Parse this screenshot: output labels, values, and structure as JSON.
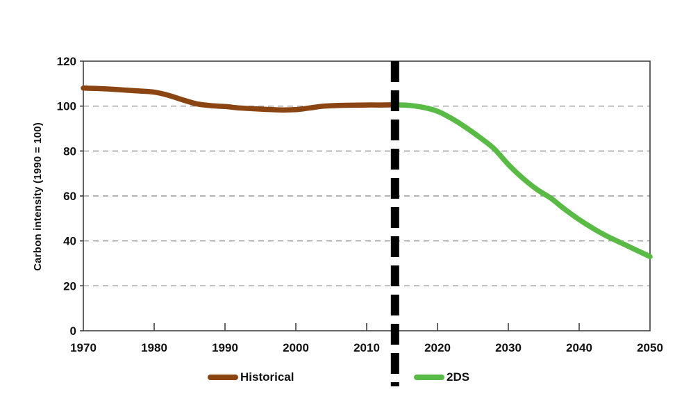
{
  "chart_data": {
    "type": "line",
    "title": "",
    "xlabel": "",
    "ylabel": "Carbon intensity (1990 = 100)",
    "xlim": [
      1970,
      2050
    ],
    "ylim": [
      0,
      120
    ],
    "x_ticks": [
      1970,
      1980,
      1990,
      2000,
      2010,
      2020,
      2030,
      2040,
      2050
    ],
    "y_ticks": [
      0,
      20,
      40,
      60,
      80,
      100,
      120
    ],
    "grid": "horizontal-dashed",
    "grid_color": "#9b9b9b",
    "axis_color": "#3f3f3f",
    "legend_position": "bottom",
    "divider": {
      "x": 2014,
      "style": "dashed",
      "color": "#000000"
    },
    "series": [
      {
        "name": "Historical",
        "color": "#8B4513",
        "x": [
          1970,
          1972,
          1974,
          1976,
          1978,
          1980,
          1982,
          1984,
          1986,
          1988,
          1990,
          1992,
          1994,
          1996,
          1998,
          2000,
          2002,
          2004,
          2006,
          2008,
          2010,
          2012,
          2014
        ],
        "values": [
          108,
          107.8,
          107.5,
          107.1,
          106.7,
          106.2,
          104.8,
          102.8,
          101,
          100.2,
          99.8,
          99.2,
          98.8,
          98.5,
          98.3,
          98.4,
          99.2,
          100,
          100.3,
          100.4,
          100.5,
          100.5,
          100.6
        ]
      },
      {
        "name": "2DS",
        "color": "#5ABA46",
        "x": [
          2014,
          2016,
          2018,
          2020,
          2022,
          2024,
          2026,
          2028,
          2030,
          2032,
          2034,
          2036,
          2038,
          2040,
          2042,
          2044,
          2046,
          2048,
          2050
        ],
        "values": [
          100.6,
          100.3,
          99.4,
          97.7,
          94.5,
          90.5,
          86,
          81,
          74,
          68,
          63,
          59,
          54,
          49.5,
          45.5,
          42,
          39,
          36,
          33
        ]
      }
    ]
  },
  "legend": {
    "items": [
      {
        "label": "Historical",
        "color": "#8B4513"
      },
      {
        "label": "2DS",
        "color": "#5ABA46"
      }
    ]
  }
}
